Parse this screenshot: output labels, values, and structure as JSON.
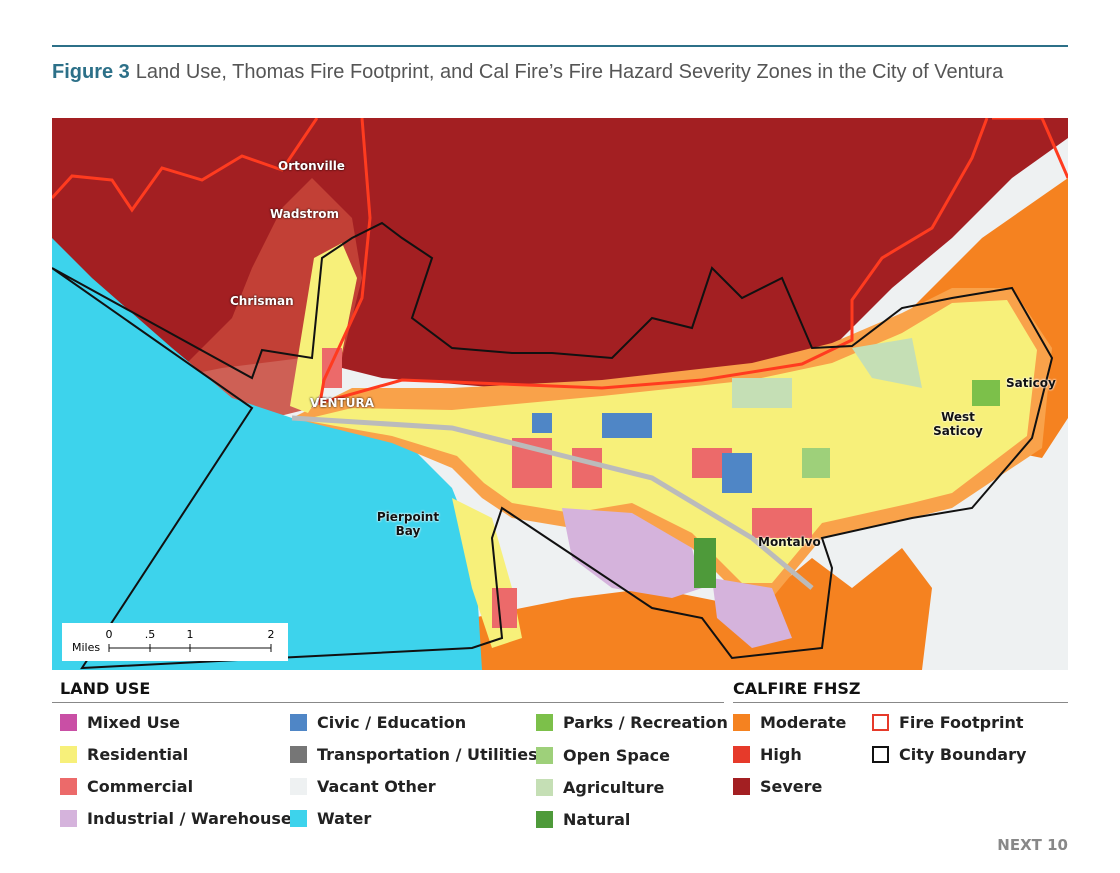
{
  "header": {
    "figure": "Figure 3",
    "title": "Land Use, Thomas Fire Footprint, and Cal Fire’s Fire Hazard Severity Zones in the City of Ventura"
  },
  "map": {
    "labels": [
      "Ortonville",
      "Wadstrom",
      "Chrisman",
      "VENTURA",
      "Pierpoint Bay",
      "Saticoy",
      "West Saticoy",
      "Montalvo"
    ],
    "scale": {
      "ticks": [
        "0",
        ".5",
        "1",
        "2"
      ],
      "unit": "Miles"
    }
  },
  "legend": {
    "land_use": {
      "title": "LAND USE",
      "items": [
        "Mixed Use",
        "Residential",
        "Commercial",
        "Industrial / Warehouse",
        "Civic / Education",
        "Transportation / Utilities",
        "Vacant Other",
        "Water",
        "Parks / Recreation",
        "Open Space",
        "Agriculture",
        "Natural"
      ]
    },
    "fhsz": {
      "title": "CALFIRE FHSZ",
      "items": [
        "Moderate",
        "High",
        "Severe",
        "Fire Footprint",
        "City Boundary"
      ]
    }
  },
  "footer": "NEXT 10"
}
